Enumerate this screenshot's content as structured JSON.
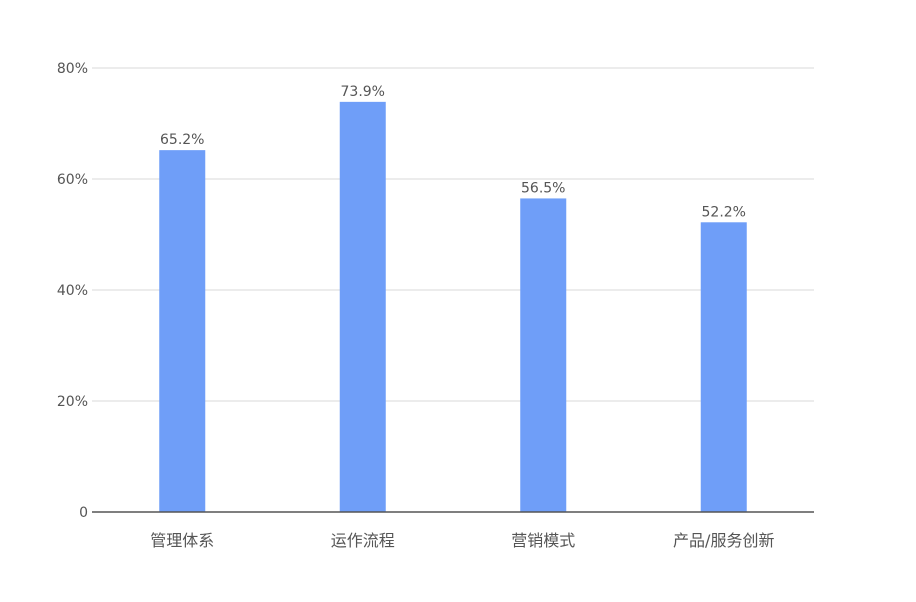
{
  "chart_data": {
    "type": "bar",
    "categories": [
      "管理体系",
      "运作流程",
      "营销模式",
      "产品/服务创新"
    ],
    "values": [
      65.2,
      73.9,
      56.5,
      52.2
    ],
    "data_labels": [
      "65.2%",
      "73.9%",
      "56.5%",
      "52.2%"
    ],
    "yticks": [
      0,
      20,
      40,
      60,
      80
    ],
    "ytick_labels": [
      "0",
      "20%",
      "40%",
      "60%",
      "80%"
    ],
    "ylim": [
      0,
      80
    ],
    "title": "",
    "xlabel": "",
    "ylabel": "",
    "grid": true,
    "legend": "none",
    "colors": {
      "bar": "#6f9ef8",
      "grid": "#d9d9d9",
      "axis": "#555555"
    }
  }
}
